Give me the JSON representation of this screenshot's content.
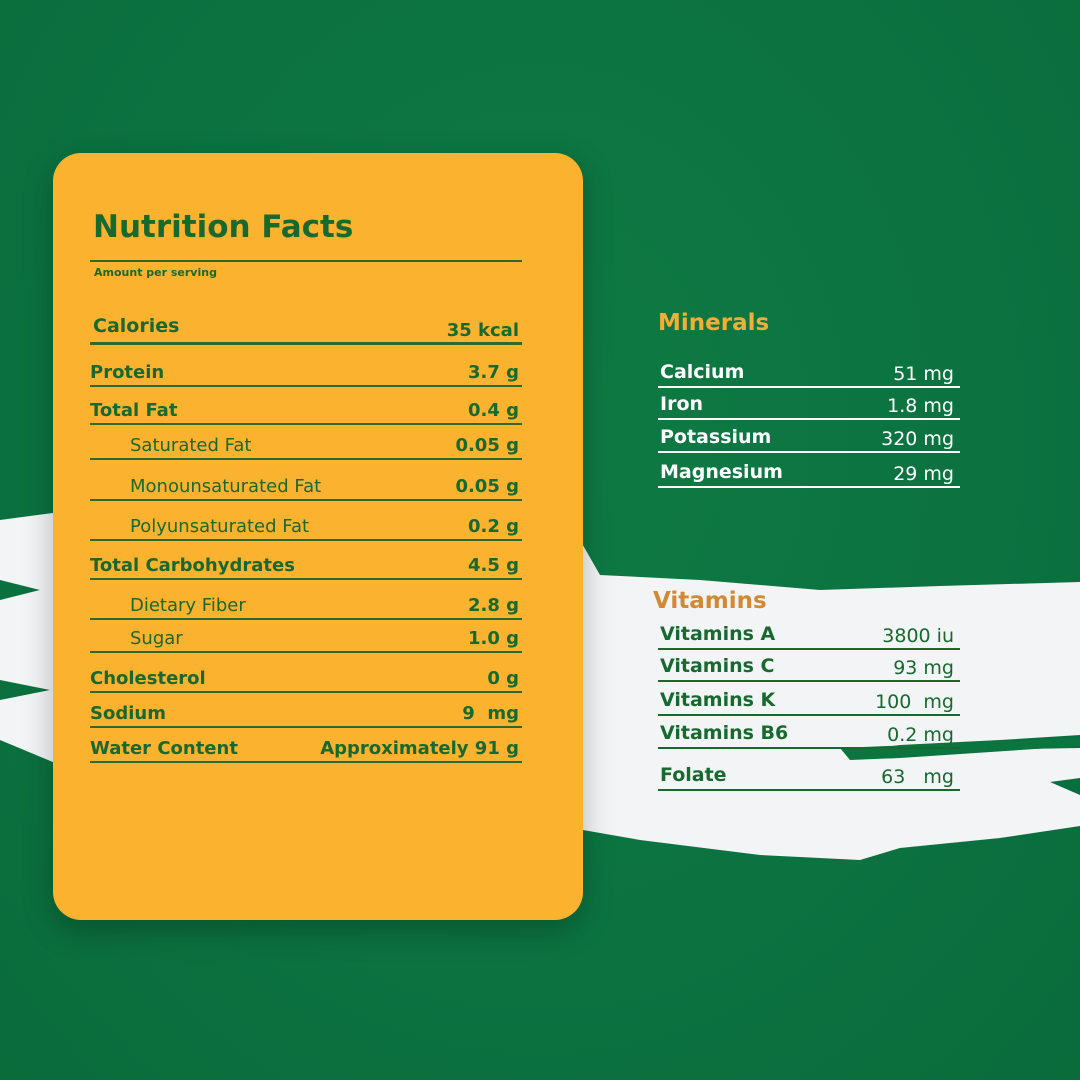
{
  "colors": {
    "background": "#0b7540",
    "card": "#fbb22e",
    "text_green": "#17692f",
    "minerals_title": "#f2ae35",
    "vitamins_title": "#d08a35",
    "brush": "#f2f4f5"
  },
  "nutrition": {
    "title": "Nutrition Facts",
    "subtitle": "Amount per serving",
    "calories": {
      "label": "Calories",
      "value": "35 kcal"
    },
    "rows": [
      {
        "label": "Protein",
        "value": "3.7 g",
        "indent": false
      },
      {
        "label": "Total Fat",
        "value": "0.4 g",
        "indent": false
      },
      {
        "label": "Saturated Fat",
        "value": "0.05 g",
        "indent": true
      },
      {
        "label": "Monounsaturated Fat",
        "value": "0.05 g",
        "indent": true
      },
      {
        "label": "Polyunsaturated Fat",
        "value": "0.2 g",
        "indent": true
      },
      {
        "label": "Total Carbohydrates",
        "value": "4.5 g",
        "indent": false
      },
      {
        "label": "Dietary Fiber",
        "value": "2.8 g",
        "indent": true
      },
      {
        "label": "Sugar",
        "value": "1.0 g",
        "indent": true
      },
      {
        "label": "Cholesterol",
        "value": "0 g",
        "indent": false
      },
      {
        "label": "Sodium",
        "value": "9  mg",
        "indent": false
      },
      {
        "label": "Water Content",
        "value": "Approximately 91 g",
        "indent": false
      }
    ]
  },
  "minerals": {
    "title": "Minerals",
    "rows": [
      {
        "label": "Calcium",
        "value": "51 mg"
      },
      {
        "label": "Iron",
        "value": "1.8 mg"
      },
      {
        "label": "Potassium",
        "value": "320 mg"
      },
      {
        "label": "Magnesium",
        "value": "29 mg"
      }
    ]
  },
  "vitamins": {
    "title": "Vitamins",
    "rows": [
      {
        "label": "Vitamins A",
        "value": "3800 iu"
      },
      {
        "label": "Vitamins C",
        "value": "93 mg"
      },
      {
        "label": "Vitamins K",
        "value": "100  mg"
      },
      {
        "label": "Vitamins B6",
        "value": "0.2 mg"
      },
      {
        "label": "Folate",
        "value": "63   mg"
      }
    ]
  }
}
